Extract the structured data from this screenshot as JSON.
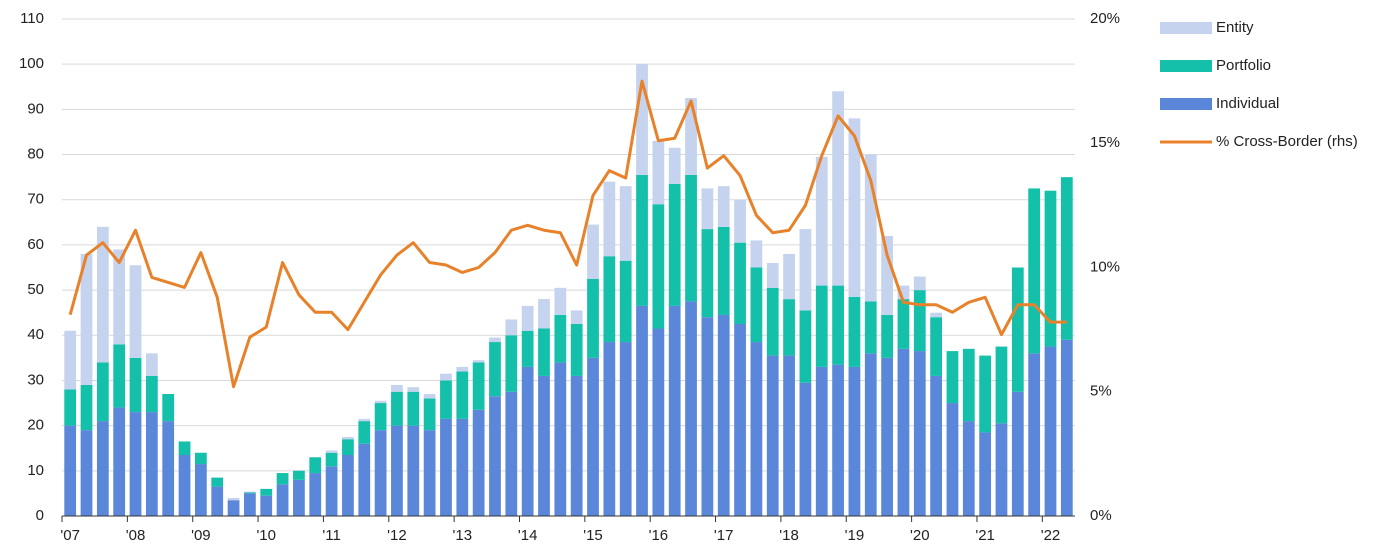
{
  "chart_data": {
    "type": "bar",
    "categories": [
      "'07",
      null,
      null,
      null,
      "'08",
      null,
      null,
      null,
      "'09",
      null,
      null,
      null,
      "'10",
      null,
      null,
      null,
      "'11",
      null,
      null,
      null,
      "'12",
      null,
      null,
      null,
      "'13",
      null,
      null,
      null,
      "'14",
      null,
      null,
      null,
      "'15",
      null,
      null,
      null,
      "'16",
      null,
      null,
      null,
      "'17",
      null,
      null,
      null,
      "'18",
      null,
      null,
      null,
      "'19",
      null,
      null,
      null,
      "'20",
      null,
      null,
      null,
      "'21",
      null,
      null,
      null,
      "'22",
      null
    ],
    "series": [
      {
        "name": "Entity",
        "color": "#c5d3ee",
        "values": [
          13,
          29,
          30,
          21,
          20.5,
          5,
          0,
          0,
          0,
          0,
          0.5,
          0.2,
          0,
          0,
          0.2,
          0,
          0.5,
          0.5,
          0.5,
          0.5,
          1.5,
          1,
          1,
          1.5,
          1,
          0.5,
          1,
          3.5,
          5.5,
          6.5,
          6,
          3,
          12,
          16.5,
          16.5,
          24.5,
          14,
          8,
          17,
          9,
          9,
          9.5,
          6,
          5.5,
          10,
          18,
          28.5,
          43,
          39.5,
          32.5,
          17.5,
          3,
          3,
          1,
          0,
          0,
          0,
          0,
          0,
          0,
          0,
          0
        ]
      },
      {
        "name": "Portfolio",
        "color": "#14c0aa",
        "values": [
          8,
          10,
          13,
          14,
          12,
          8,
          6,
          3,
          2.5,
          2,
          0,
          0.2,
          1.5,
          2.5,
          2,
          3.5,
          3,
          3.5,
          5,
          6,
          7.5,
          7.5,
          7,
          8.5,
          10.5,
          10.5,
          12,
          12.5,
          8,
          10.5,
          10.5,
          11.5,
          17.5,
          19,
          18,
          29,
          27.5,
          27,
          28,
          19.5,
          19.5,
          18,
          16.5,
          15,
          12.5,
          16,
          18,
          17.5,
          15.5,
          11.5,
          9.5,
          11,
          13.5,
          13,
          11.5,
          16,
          17,
          17,
          27.5,
          36.5,
          34.5,
          36
        ]
      },
      {
        "name": "Individual",
        "color": "#5b87db",
        "values": [
          20,
          19,
          21,
          24,
          23,
          23,
          21,
          13.5,
          11.5,
          6.5,
          3.5,
          5,
          4.5,
          7,
          8,
          9.5,
          11,
          13.5,
          16,
          19,
          20,
          20,
          19,
          21.5,
          21.5,
          23.5,
          26.5,
          27.5,
          33,
          31,
          34,
          31,
          35,
          38.5,
          38.5,
          46.5,
          41.5,
          46.5,
          47.5,
          44,
          44.5,
          42.5,
          38.5,
          35.5,
          35.5,
          29.5,
          33,
          33.5,
          33,
          36,
          35,
          37,
          36.5,
          31,
          25,
          21,
          18.5,
          20.5,
          27.5,
          36,
          37.5,
          39
        ]
      },
      {
        "name": "% Cross-Border (rhs)",
        "color": "#e8822a",
        "type": "line",
        "axis": "y2",
        "values": [
          8.1,
          10.5,
          11.0,
          10.2,
          11.5,
          9.6,
          9.4,
          9.2,
          10.6,
          8.8,
          5.2,
          7.2,
          7.6,
          10.2,
          8.9,
          8.2,
          8.2,
          7.5,
          8.6,
          9.7,
          10.5,
          11.0,
          10.2,
          10.1,
          9.8,
          10.0,
          10.6,
          11.5,
          11.7,
          11.5,
          11.4,
          10.1,
          12.9,
          13.9,
          13.6,
          17.5,
          15.1,
          15.2,
          16.7,
          14.0,
          14.5,
          13.7,
          12.1,
          11.4,
          11.5,
          12.5,
          14.5,
          16.1,
          15.3,
          13.5,
          10.5,
          8.6,
          8.5,
          8.5,
          8.2,
          8.6,
          8.8,
          7.3,
          8.5,
          8.5,
          7.8,
          7.8
        ]
      }
    ],
    "ylim": [
      0,
      110
    ],
    "yticks": [
      0,
      10,
      20,
      30,
      40,
      50,
      60,
      70,
      80,
      90,
      100,
      110
    ],
    "y2lim": [
      0,
      20
    ],
    "y2ticks": [
      {
        "value": 0,
        "label": "0%"
      },
      {
        "value": 5,
        "label": "5%"
      },
      {
        "value": 10,
        "label": "10%"
      },
      {
        "value": 15,
        "label": "15%"
      },
      {
        "value": 20,
        "label": "20%"
      }
    ],
    "grid": true,
    "legend": "right"
  }
}
